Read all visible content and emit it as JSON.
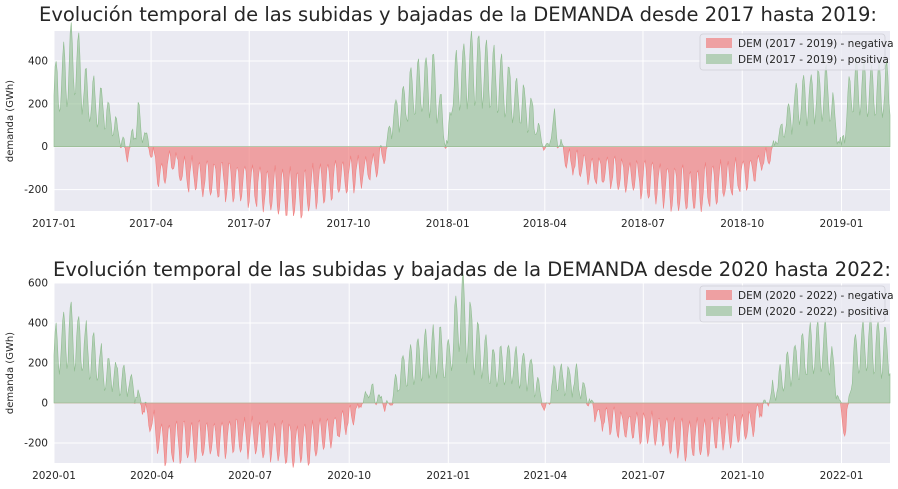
{
  "colors": {
    "background": "#EAEAF2",
    "grid": "#FFFFFF",
    "negativa": "#F08080",
    "positiva": "#8FBC8F"
  },
  "chart_data": [
    {
      "type": "area",
      "title": "Evolución temporal de las subidas y bajadas de la DEMANDA desde 2017 hasta 2019:",
      "xlabel": "",
      "ylabel": "demanda (GWh)",
      "x_range": [
        "2017-01-01",
        "2019-02-15"
      ],
      "ylim": [
        -300,
        540
      ],
      "yticks": [
        -200,
        0,
        200,
        400
      ],
      "xticks": [
        "2017-01",
        "2017-04",
        "2017-07",
        "2017-10",
        "2018-01",
        "2018-04",
        "2018-07",
        "2018-10",
        "2019-01"
      ],
      "legend_position": "top-right",
      "grid": true,
      "series": [
        {
          "name": "DEM (2017 - 2019) - negativa",
          "color": "#F08080",
          "fill_alpha": 0.7
        },
        {
          "name": "DEM (2017 - 2019) - positiva",
          "color": "#8FBC8F",
          "fill_alpha": 0.6
        }
      ],
      "anchors": [
        [
          "2017-01-01",
          250
        ],
        [
          "2017-01-10",
          320
        ],
        [
          "2017-01-20",
          420
        ],
        [
          "2017-02-01",
          230
        ],
        [
          "2017-02-15",
          180
        ],
        [
          "2017-03-01",
          80
        ],
        [
          "2017-03-10",
          -40
        ],
        [
          "2017-03-20",
          130
        ],
        [
          "2017-04-01",
          -20
        ],
        [
          "2017-04-10",
          -150
        ],
        [
          "2017-04-20",
          -60
        ],
        [
          "2017-05-01",
          -130
        ],
        [
          "2017-06-01",
          -150
        ],
        [
          "2017-07-01",
          -175
        ],
        [
          "2017-08-01",
          -215
        ],
        [
          "2017-08-20",
          -225
        ],
        [
          "2017-09-01",
          -185
        ],
        [
          "2017-09-20",
          -150
        ],
        [
          "2017-10-10",
          -120
        ],
        [
          "2017-10-25",
          -90
        ],
        [
          "2017-11-05",
          -20
        ],
        [
          "2017-11-10",
          120
        ],
        [
          "2017-12-01",
          270
        ],
        [
          "2017-12-20",
          300
        ],
        [
          "2018-01-01",
          -10
        ],
        [
          "2018-01-05",
          280
        ],
        [
          "2018-01-25",
          380
        ],
        [
          "2018-02-10",
          330
        ],
        [
          "2018-03-01",
          250
        ],
        [
          "2018-03-20",
          150
        ],
        [
          "2018-04-01",
          -20
        ],
        [
          "2018-04-10",
          100
        ],
        [
          "2018-04-20",
          -60
        ],
        [
          "2018-05-10",
          -100
        ],
        [
          "2018-06-10",
          -130
        ],
        [
          "2018-07-10",
          -160
        ],
        [
          "2018-08-05",
          -205
        ],
        [
          "2018-08-25",
          -195
        ],
        [
          "2018-09-15",
          -160
        ],
        [
          "2018-10-10",
          -110
        ],
        [
          "2018-10-25",
          -40
        ],
        [
          "2018-11-01",
          20
        ],
        [
          "2018-11-20",
          200
        ],
        [
          "2018-12-20",
          260
        ],
        [
          "2019-01-01",
          -10
        ],
        [
          "2019-01-10",
          280
        ],
        [
          "2019-02-15",
          260
        ]
      ],
      "seed": 7
    },
    {
      "type": "area",
      "title": "Evolución temporal de las subidas y bajadas de la DEMANDA desde 2020 hasta 2022:",
      "xlabel": "",
      "ylabel": "demanda (GWh)",
      "x_range": [
        "2020-01-01",
        "2022-02-15"
      ],
      "ylim": [
        -300,
        600
      ],
      "yticks": [
        -200,
        0,
        200,
        400,
        600
      ],
      "xticks": [
        "2020-01",
        "2020-04",
        "2020-07",
        "2020-10",
        "2021-01",
        "2021-04",
        "2021-07",
        "2021-10",
        "2022-01"
      ],
      "legend_position": "top-right",
      "grid": true,
      "series": [
        {
          "name": "DEM (2020 - 2022) - negativa",
          "color": "#F08080",
          "fill_alpha": 0.7
        },
        {
          "name": "DEM (2020 - 2022) - positiva",
          "color": "#8FBC8F",
          "fill_alpha": 0.6
        }
      ],
      "anchors": [
        [
          "2020-01-01",
          250
        ],
        [
          "2020-01-15",
          350
        ],
        [
          "2020-02-01",
          260
        ],
        [
          "2020-02-20",
          150
        ],
        [
          "2020-03-10",
          100
        ],
        [
          "2020-03-25",
          -30
        ],
        [
          "2020-04-10",
          -200
        ],
        [
          "2020-05-10",
          -190
        ],
        [
          "2020-06-10",
          -170
        ],
        [
          "2020-07-10",
          -175
        ],
        [
          "2020-08-05",
          -210
        ],
        [
          "2020-08-25",
          -200
        ],
        [
          "2020-09-15",
          -140
        ],
        [
          "2020-10-05",
          -60
        ],
        [
          "2020-10-20",
          60
        ],
        [
          "2020-11-05",
          -20
        ],
        [
          "2020-11-20",
          160
        ],
        [
          "2020-12-10",
          240
        ],
        [
          "2020-12-25",
          260
        ],
        [
          "2021-01-01",
          200
        ],
        [
          "2021-01-12",
          480
        ],
        [
          "2021-01-25",
          300
        ],
        [
          "2021-02-10",
          180
        ],
        [
          "2021-03-01",
          200
        ],
        [
          "2021-03-20",
          150
        ],
        [
          "2021-04-01",
          -40
        ],
        [
          "2021-04-10",
          130
        ],
        [
          "2021-05-01",
          110
        ],
        [
          "2021-05-20",
          -70
        ],
        [
          "2021-06-10",
          -110
        ],
        [
          "2021-07-10",
          -130
        ],
        [
          "2021-08-05",
          -180
        ],
        [
          "2021-08-25",
          -170
        ],
        [
          "2021-09-20",
          -140
        ],
        [
          "2021-10-10",
          -100
        ],
        [
          "2021-10-25",
          20
        ],
        [
          "2021-11-10",
          150
        ],
        [
          "2021-12-01",
          260
        ],
        [
          "2021-12-20",
          280
        ],
        [
          "2022-01-01",
          -60
        ],
        [
          "2022-01-05",
          -130
        ],
        [
          "2022-01-12",
          220
        ],
        [
          "2022-01-25",
          300
        ],
        [
          "2022-02-15",
          250
        ]
      ],
      "seed": 13
    }
  ]
}
